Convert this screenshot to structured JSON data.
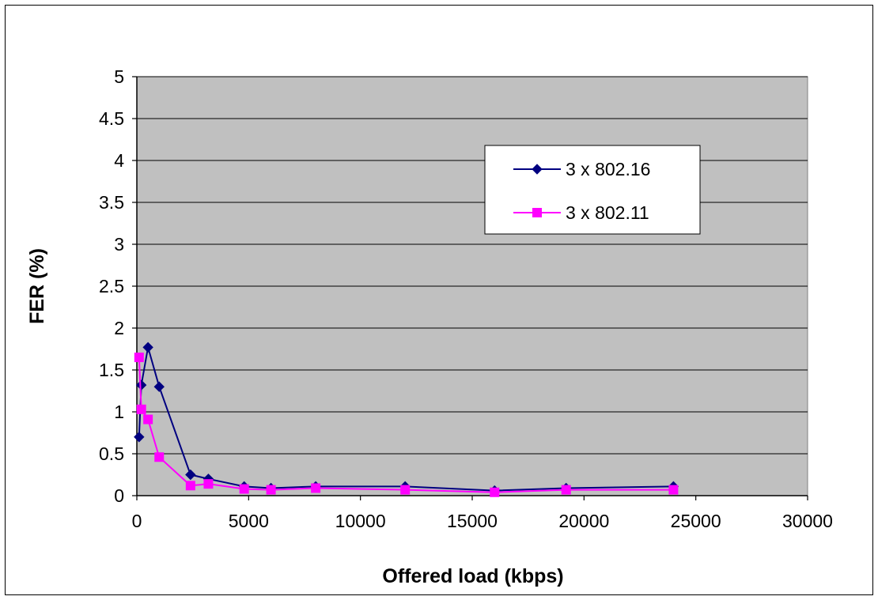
{
  "chart_data": {
    "type": "line",
    "title": "",
    "xlabel": "Offered load (kbps)",
    "ylabel": "FER (%)",
    "xlim": [
      0,
      30000
    ],
    "ylim": [
      0,
      5
    ],
    "x_ticks": [
      0,
      5000,
      10000,
      15000,
      20000,
      25000,
      30000
    ],
    "y_ticks": [
      0,
      0.5,
      1,
      1.5,
      2,
      2.5,
      3,
      3.5,
      4,
      4.5,
      5
    ],
    "x_tick_labels": [
      "0",
      "5000",
      "10000",
      "15000",
      "20000",
      "25000",
      "30000"
    ],
    "y_tick_labels": [
      "0",
      "0.5",
      "1",
      "1.5",
      "2",
      "2.5",
      "3",
      "3.5",
      "4",
      "4.5",
      "5"
    ],
    "grid": "horizontal",
    "legend_position": "right",
    "plot_background": "#c0c0c0",
    "series": [
      {
        "name": "3 x 802.16",
        "color": "#000080",
        "marker": "diamond",
        "points": [
          {
            "x": 100,
            "y": 0.7
          },
          {
            "x": 200,
            "y": 1.32
          },
          {
            "x": 500,
            "y": 1.77
          },
          {
            "x": 1000,
            "y": 1.3
          },
          {
            "x": 2400,
            "y": 0.25
          },
          {
            "x": 3200,
            "y": 0.2
          },
          {
            "x": 4800,
            "y": 0.11
          },
          {
            "x": 6000,
            "y": 0.09
          },
          {
            "x": 8000,
            "y": 0.11
          },
          {
            "x": 12000,
            "y": 0.11
          },
          {
            "x": 16000,
            "y": 0.06
          },
          {
            "x": 19200,
            "y": 0.09
          },
          {
            "x": 24000,
            "y": 0.11
          }
        ]
      },
      {
        "name": "3 x 802.11",
        "color": "#ff00ff",
        "marker": "square",
        "points": [
          {
            "x": 100,
            "y": 1.65
          },
          {
            "x": 200,
            "y": 1.03
          },
          {
            "x": 500,
            "y": 0.91
          },
          {
            "x": 1000,
            "y": 0.46
          },
          {
            "x": 2400,
            "y": 0.12
          },
          {
            "x": 3200,
            "y": 0.14
          },
          {
            "x": 4800,
            "y": 0.08
          },
          {
            "x": 6000,
            "y": 0.07
          },
          {
            "x": 8000,
            "y": 0.09
          },
          {
            "x": 12000,
            "y": 0.07
          },
          {
            "x": 16000,
            "y": 0.04
          },
          {
            "x": 19200,
            "y": 0.07
          },
          {
            "x": 24000,
            "y": 0.07
          }
        ]
      }
    ]
  }
}
